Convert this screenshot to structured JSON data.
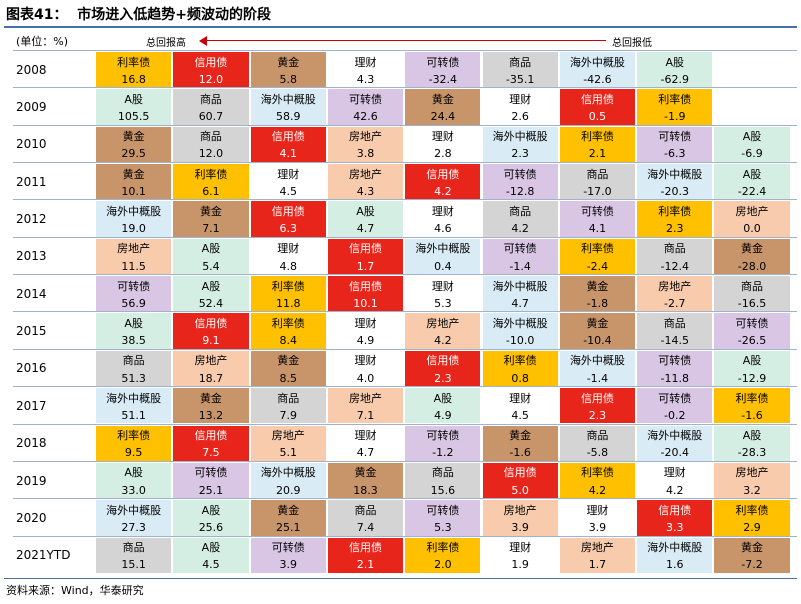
{
  "header": {
    "title": "图表41：  市场进入低趋势+频波动的阶段",
    "unit": "(单位：%)",
    "high_label": "总回报高",
    "low_label": "总回报低"
  },
  "palette": {
    "利率债": [
      "#FFC000",
      "#000"
    ],
    "信用债": [
      "#E8251B",
      "#fff"
    ],
    "黄金": [
      "#C8956B",
      "#000"
    ],
    "理财": [
      "#FFFFFF",
      "#000"
    ],
    "可转债": [
      "#D9C6E4",
      "#000"
    ],
    "商品": [
      "#D4D4D4",
      "#000"
    ],
    "海外中概股": [
      "#D9EBF5",
      "#000"
    ],
    "A股": [
      "#D5EEE4",
      "#000"
    ],
    "房地产": [
      "#F8CBAD",
      "#000"
    ]
  },
  "table": {
    "rows": [
      {
        "year": "2008",
        "cells": [
          [
            "利率债",
            "16.8"
          ],
          [
            "信用债",
            "12.0"
          ],
          [
            "黄金",
            "5.8"
          ],
          [
            "理财",
            "4.3"
          ],
          [
            "可转债",
            "-32.4"
          ],
          [
            "商品",
            "-35.1"
          ],
          [
            "海外中概股",
            "-42.6"
          ],
          [
            "A股",
            "-62.9"
          ]
        ]
      },
      {
        "year": "2009",
        "cells": [
          [
            "A股",
            "105.5"
          ],
          [
            "商品",
            "60.7"
          ],
          [
            "海外中概股",
            "58.9"
          ],
          [
            "可转债",
            "42.6"
          ],
          [
            "黄金",
            "24.4"
          ],
          [
            "理财",
            "2.6"
          ],
          [
            "信用债",
            "0.5"
          ],
          [
            "利率债",
            "-1.9"
          ]
        ]
      },
      {
        "year": "2010",
        "cells": [
          [
            "黄金",
            "29.5"
          ],
          [
            "商品",
            "12.0"
          ],
          [
            "信用债",
            "4.1"
          ],
          [
            "房地产",
            "3.8"
          ],
          [
            "理财",
            "2.8"
          ],
          [
            "海外中概股",
            "2.3"
          ],
          [
            "利率债",
            "2.1"
          ],
          [
            "可转债",
            "-6.3"
          ],
          [
            "A股",
            "-6.9"
          ]
        ]
      },
      {
        "year": "2011",
        "cells": [
          [
            "黄金",
            "10.1"
          ],
          [
            "利率债",
            "6.1"
          ],
          [
            "理财",
            "4.5"
          ],
          [
            "房地产",
            "4.3"
          ],
          [
            "信用债",
            "4.2"
          ],
          [
            "可转债",
            "-12.8"
          ],
          [
            "商品",
            "-17.0"
          ],
          [
            "海外中概股",
            "-20.3"
          ],
          [
            "A股",
            "-22.4"
          ]
        ]
      },
      {
        "year": "2012",
        "cells": [
          [
            "海外中概股",
            "19.0"
          ],
          [
            "黄金",
            "7.1"
          ],
          [
            "信用债",
            "6.3"
          ],
          [
            "A股",
            "4.7"
          ],
          [
            "理财",
            "4.6"
          ],
          [
            "商品",
            "4.2"
          ],
          [
            "可转债",
            "4.1"
          ],
          [
            "利率债",
            "2.3"
          ],
          [
            "房地产",
            "0.0"
          ]
        ]
      },
      {
        "year": "2013",
        "cells": [
          [
            "房地产",
            "11.5"
          ],
          [
            "A股",
            "5.4"
          ],
          [
            "理财",
            "4.8"
          ],
          [
            "信用债",
            "1.7"
          ],
          [
            "海外中概股",
            "0.4"
          ],
          [
            "可转债",
            "-1.4"
          ],
          [
            "利率债",
            "-2.4"
          ],
          [
            "商品",
            "-12.4"
          ],
          [
            "黄金",
            "-28.0"
          ]
        ]
      },
      {
        "year": "2014",
        "cells": [
          [
            "可转债",
            "56.9"
          ],
          [
            "A股",
            "52.4"
          ],
          [
            "利率债",
            "11.8"
          ],
          [
            "信用债",
            "10.1"
          ],
          [
            "理财",
            "5.3"
          ],
          [
            "海外中概股",
            "4.7"
          ],
          [
            "黄金",
            "-1.8"
          ],
          [
            "房地产",
            "-2.7"
          ],
          [
            "商品",
            "-16.5"
          ]
        ]
      },
      {
        "year": "2015",
        "cells": [
          [
            "A股",
            "38.5"
          ],
          [
            "信用债",
            "9.1"
          ],
          [
            "利率债",
            "8.4"
          ],
          [
            "理财",
            "4.9"
          ],
          [
            "房地产",
            "4.2"
          ],
          [
            "海外中概股",
            "-10.0"
          ],
          [
            "黄金",
            "-10.4"
          ],
          [
            "商品",
            "-14.5"
          ],
          [
            "可转债",
            "-26.5"
          ]
        ]
      },
      {
        "year": "2016",
        "cells": [
          [
            "商品",
            "51.3"
          ],
          [
            "房地产",
            "18.7"
          ],
          [
            "黄金",
            "8.5"
          ],
          [
            "理财",
            "4.0"
          ],
          [
            "信用债",
            "2.3"
          ],
          [
            "利率债",
            "0.8"
          ],
          [
            "海外中概股",
            "-1.4"
          ],
          [
            "可转债",
            "-11.8"
          ],
          [
            "A股",
            "-12.9"
          ]
        ]
      },
      {
        "year": "2017",
        "cells": [
          [
            "海外中概股",
            "51.1"
          ],
          [
            "黄金",
            "13.2"
          ],
          [
            "商品",
            "7.9"
          ],
          [
            "房地产",
            "7.1"
          ],
          [
            "A股",
            "4.9"
          ],
          [
            "理财",
            "4.5"
          ],
          [
            "信用债",
            "2.3"
          ],
          [
            "可转债",
            "-0.2"
          ],
          [
            "利率债",
            "-1.6"
          ]
        ]
      },
      {
        "year": "2018",
        "cells": [
          [
            "利率债",
            "9.5"
          ],
          [
            "信用债",
            "7.5"
          ],
          [
            "房地产",
            "5.1"
          ],
          [
            "理财",
            "4.7"
          ],
          [
            "可转债",
            "-1.2"
          ],
          [
            "黄金",
            "-1.6"
          ],
          [
            "商品",
            "-5.8"
          ],
          [
            "海外中概股",
            "-20.4"
          ],
          [
            "A股",
            "-28.3"
          ]
        ]
      },
      {
        "year": "2019",
        "cells": [
          [
            "A股",
            "33.0"
          ],
          [
            "可转债",
            "25.1"
          ],
          [
            "海外中概股",
            "20.9"
          ],
          [
            "黄金",
            "18.3"
          ],
          [
            "商品",
            "15.6"
          ],
          [
            "信用债",
            "5.0"
          ],
          [
            "利率债",
            "4.2"
          ],
          [
            "理财",
            "4.2"
          ],
          [
            "房地产",
            "3.2"
          ]
        ]
      },
      {
        "year": "2020",
        "cells": [
          [
            "海外中概股",
            "27.3"
          ],
          [
            "A股",
            "25.6"
          ],
          [
            "黄金",
            "25.1"
          ],
          [
            "商品",
            "7.4"
          ],
          [
            "可转债",
            "5.3"
          ],
          [
            "房地产",
            "3.9"
          ],
          [
            "理财",
            "3.9"
          ],
          [
            "信用债",
            "3.3"
          ],
          [
            "利率债",
            "2.9"
          ]
        ]
      },
      {
        "year": "2021YTD",
        "cells": [
          [
            "商品",
            "15.1"
          ],
          [
            "A股",
            "4.5"
          ],
          [
            "可转债",
            "3.9"
          ],
          [
            "信用债",
            "2.1"
          ],
          [
            "利率债",
            "2.0"
          ],
          [
            "理财",
            "1.9"
          ],
          [
            "房地产",
            "1.7"
          ],
          [
            "海外中概股",
            "1.6"
          ],
          [
            "黄金",
            "-7.2"
          ]
        ]
      }
    ]
  },
  "footer": {
    "source": "资料来源：Wind，华泰研究"
  }
}
